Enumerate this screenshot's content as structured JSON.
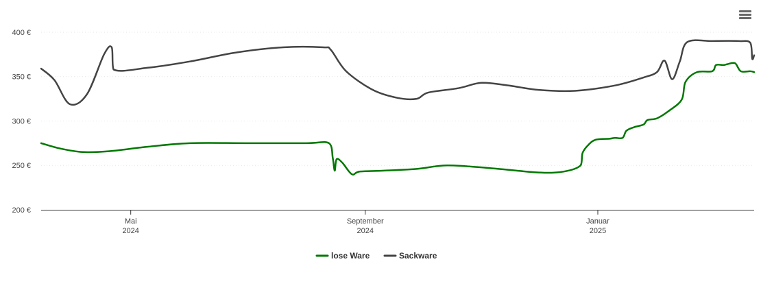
{
  "chart_data": {
    "type": "line",
    "y_tick_labels": [
      "200 €",
      "250 €",
      "300 €",
      "350 €",
      "400 €"
    ],
    "y_ticks": [
      200,
      250,
      300,
      350,
      400
    ],
    "ylim": [
      200,
      410
    ],
    "xlim": [
      "2024-03-15",
      "2025-03-24"
    ],
    "x_ticks": [
      {
        "date": "2024-05-01",
        "line1": "Mai",
        "line2": "2024"
      },
      {
        "date": "2024-09-01",
        "line1": "September",
        "line2": "2024"
      },
      {
        "date": "2025-01-01",
        "line1": "Januar",
        "line2": "2025"
      }
    ],
    "grid": true,
    "legend_position": "bottom-center",
    "series": [
      {
        "name": "lose Ware",
        "color": "#007800",
        "points": [
          [
            "2024-03-15",
            275
          ],
          [
            "2024-03-25",
            269
          ],
          [
            "2024-04-06",
            265
          ],
          [
            "2024-04-20",
            266
          ],
          [
            "2024-05-10",
            271
          ],
          [
            "2024-06-01",
            275
          ],
          [
            "2024-07-01",
            275
          ],
          [
            "2024-08-01",
            275
          ],
          [
            "2024-08-13",
            275
          ],
          [
            "2024-08-15",
            258
          ],
          [
            "2024-08-16",
            244
          ],
          [
            "2024-08-17",
            257
          ],
          [
            "2024-08-20",
            253
          ],
          [
            "2024-08-25",
            240
          ],
          [
            "2024-08-29",
            243
          ],
          [
            "2024-09-10",
            244
          ],
          [
            "2024-09-28",
            246
          ],
          [
            "2024-10-14",
            250
          ],
          [
            "2024-11-05",
            247
          ],
          [
            "2024-12-01",
            242
          ],
          [
            "2024-12-14",
            243
          ],
          [
            "2024-12-23",
            250
          ],
          [
            "2024-12-24",
            264
          ],
          [
            "2024-12-27",
            273
          ],
          [
            "2024-12-31",
            279
          ],
          [
            "2025-01-07",
            280
          ],
          [
            "2025-01-10",
            281
          ],
          [
            "2025-01-14",
            281
          ],
          [
            "2025-01-16",
            289
          ],
          [
            "2025-01-20",
            293
          ],
          [
            "2025-01-25",
            296
          ],
          [
            "2025-01-27",
            301
          ],
          [
            "2025-02-01",
            303
          ],
          [
            "2025-02-07",
            311
          ],
          [
            "2025-02-14",
            324
          ],
          [
            "2025-02-16",
            344
          ],
          [
            "2025-02-22",
            355
          ],
          [
            "2025-03-02",
            356
          ],
          [
            "2025-03-04",
            363
          ],
          [
            "2025-03-08",
            363
          ],
          [
            "2025-03-10",
            364
          ],
          [
            "2025-03-14",
            365
          ],
          [
            "2025-03-17",
            356
          ],
          [
            "2025-03-22",
            356
          ],
          [
            "2025-03-24",
            355
          ]
        ]
      },
      {
        "name": "Sackware",
        "color": "#444444",
        "points": [
          [
            "2024-03-15",
            359
          ],
          [
            "2024-03-22",
            346
          ],
          [
            "2024-03-30",
            319
          ],
          [
            "2024-04-08",
            330
          ],
          [
            "2024-04-17",
            375
          ],
          [
            "2024-04-21",
            383
          ],
          [
            "2024-04-22",
            358
          ],
          [
            "2024-05-10",
            360
          ],
          [
            "2024-06-01",
            367
          ],
          [
            "2024-06-25",
            377
          ],
          [
            "2024-07-20",
            383
          ],
          [
            "2024-08-10",
            383
          ],
          [
            "2024-08-14",
            380
          ],
          [
            "2024-08-22",
            356
          ],
          [
            "2024-09-05",
            335
          ],
          [
            "2024-09-18",
            326
          ],
          [
            "2024-09-28",
            325
          ],
          [
            "2024-10-04",
            332
          ],
          [
            "2024-10-20",
            337
          ],
          [
            "2024-11-01",
            343
          ],
          [
            "2024-11-15",
            340
          ],
          [
            "2024-12-01",
            335
          ],
          [
            "2024-12-20",
            334
          ],
          [
            "2025-01-10",
            340
          ],
          [
            "2025-01-25",
            349
          ],
          [
            "2025-02-01",
            355
          ],
          [
            "2025-02-05",
            368
          ],
          [
            "2025-02-09",
            347
          ],
          [
            "2025-02-13",
            367
          ],
          [
            "2025-02-17",
            389
          ],
          [
            "2025-03-02",
            390
          ],
          [
            "2025-03-16",
            390
          ],
          [
            "2025-03-22",
            388
          ],
          [
            "2025-03-23",
            370
          ],
          [
            "2025-03-24",
            374
          ]
        ]
      }
    ]
  },
  "menu": {
    "icon": "hamburger-menu-icon"
  }
}
